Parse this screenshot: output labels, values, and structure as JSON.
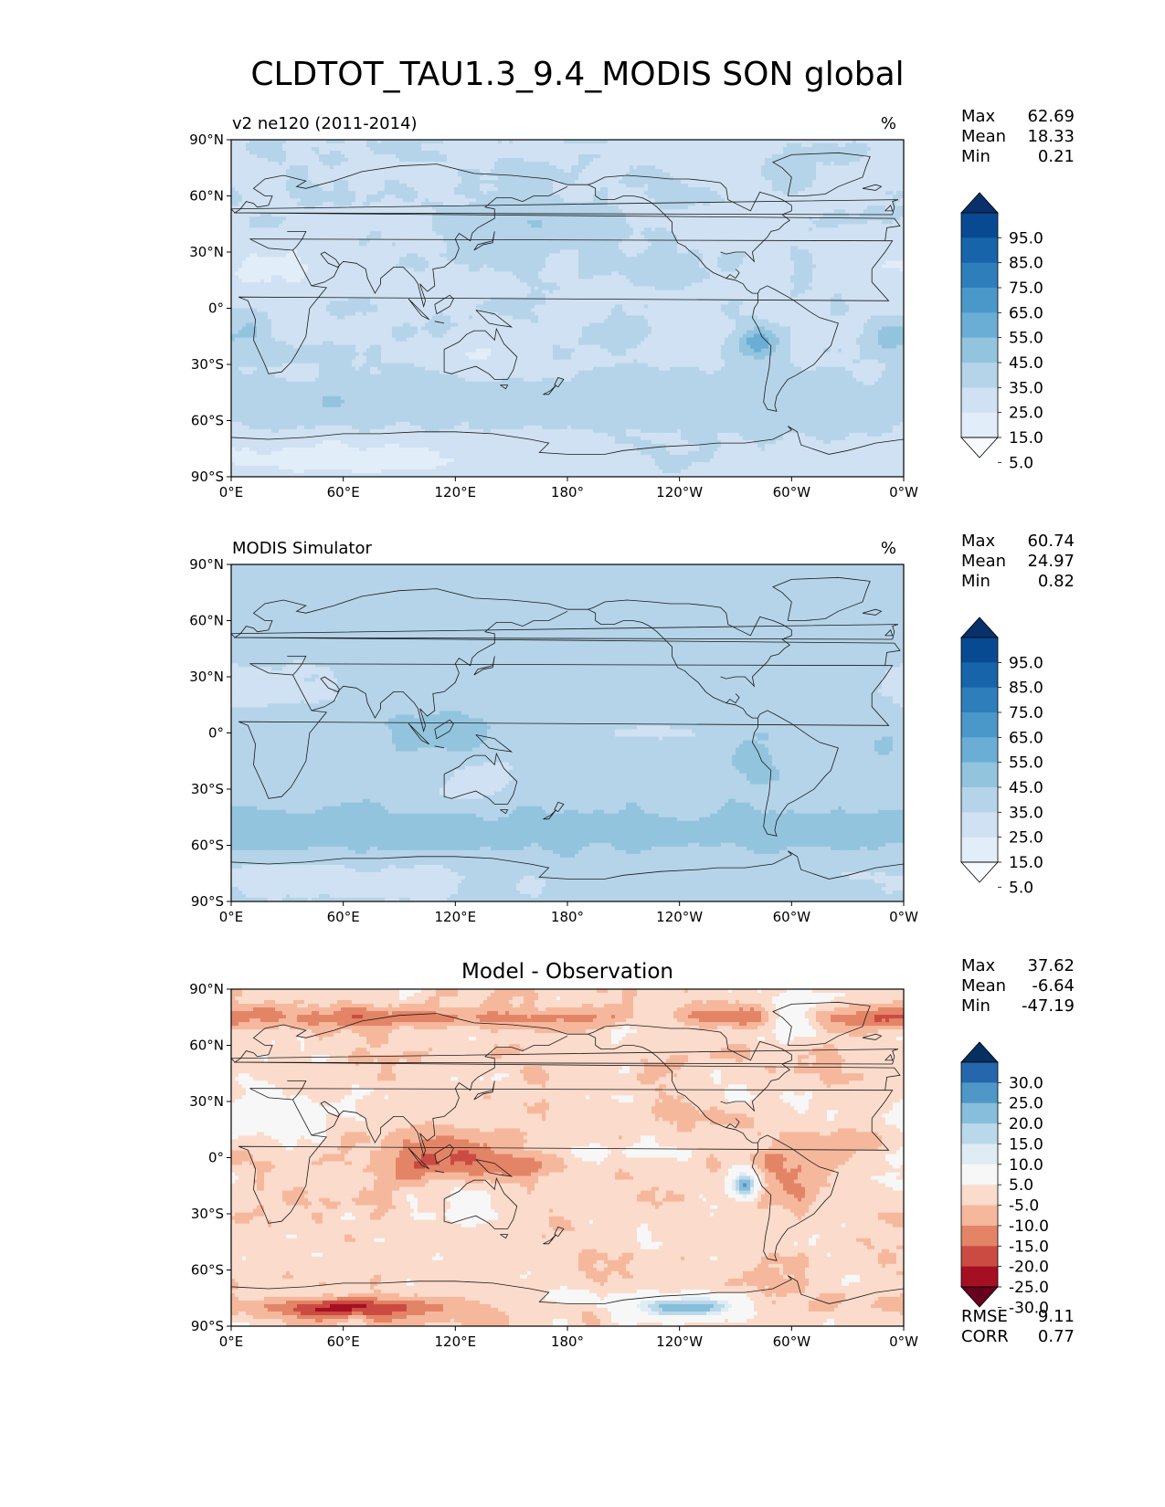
{
  "figure": {
    "title": "CLDTOT_TAU1.3_9.4_MODIS SON global"
  },
  "colors": {
    "seq": [
      "#f7fbff",
      "#e1edf8",
      "#cfe1f2",
      "#b5d4e9",
      "#93c4de",
      "#6aaed6",
      "#4a97c9",
      "#2e7ebc",
      "#1764ab",
      "#084a92",
      "#08306b"
    ],
    "div": [
      "#67001f",
      "#a50f22",
      "#cb4b42",
      "#e48466",
      "#f6b89d",
      "#fbdbcb",
      "#f7f7f7",
      "#dfecf4",
      "#b9d8e9",
      "#87bedc",
      "#4e97c6",
      "#2467ac",
      "#053061"
    ],
    "coast": "#1a1a1a"
  },
  "panels": [
    {
      "id": "model",
      "left_title": "v2 ne120 (2011-2014)",
      "center_title": "",
      "units": "%",
      "stats": [
        {
          "label": "Max",
          "value": "62.69"
        },
        {
          "label": "Mean",
          "value": "18.33"
        },
        {
          "label": "Min",
          "value": "0.21"
        }
      ],
      "colorbar": {
        "scale": "seq",
        "labels": [
          "95.0",
          "85.0",
          "75.0",
          "65.0",
          "55.0",
          "45.0",
          "35.0",
          "25.0",
          "15.0",
          "5.0"
        ]
      },
      "extra_stats": []
    },
    {
      "id": "obs",
      "left_title": "MODIS Simulator",
      "center_title": "",
      "units": "%",
      "stats": [
        {
          "label": "Max",
          "value": "60.74"
        },
        {
          "label": "Mean",
          "value": "24.97"
        },
        {
          "label": "Min",
          "value": "0.82"
        }
      ],
      "colorbar": {
        "scale": "seq",
        "labels": [
          "95.0",
          "85.0",
          "75.0",
          "65.0",
          "55.0",
          "45.0",
          "35.0",
          "25.0",
          "15.0",
          "5.0"
        ]
      },
      "extra_stats": []
    },
    {
      "id": "diff",
      "left_title": "",
      "center_title": "Model - Observation",
      "units": "",
      "stats": [
        {
          "label": "Max",
          "value": "37.62"
        },
        {
          "label": "Mean",
          "value": "-6.64"
        },
        {
          "label": "Min",
          "value": "-47.19"
        }
      ],
      "colorbar": {
        "scale": "div",
        "labels": [
          "30.0",
          "25.0",
          "20.0",
          "15.0",
          "10.0",
          "5.0",
          "-5.0",
          "-10.0",
          "-15.0",
          "-20.0",
          "-25.0",
          "-30.0"
        ]
      },
      "extra_stats": [
        {
          "label": "RMSE",
          "value": "9.11"
        },
        {
          "label": "CORR",
          "value": "0.77"
        }
      ]
    }
  ],
  "chart_data": [
    {
      "type": "heatmap",
      "title": "v2 ne120 (2011-2014)",
      "units": "%",
      "xticks": [
        "0°E",
        "60°E",
        "120°E",
        "180°",
        "120°W",
        "60°W",
        "0°W"
      ],
      "yticks": [
        "90°N",
        "60°N",
        "30°N",
        "0°",
        "30°S",
        "60°S",
        "90°S"
      ],
      "xlim": [
        0,
        360
      ],
      "ylim": [
        -90,
        90
      ],
      "levels": [
        5,
        15,
        25,
        35,
        45,
        55,
        65,
        75,
        85,
        95
      ],
      "max": 62.69,
      "mean": 18.33,
      "min": 0.21
    },
    {
      "type": "heatmap",
      "title": "MODIS Simulator",
      "units": "%",
      "xticks": [
        "0°E",
        "60°E",
        "120°E",
        "180°",
        "120°W",
        "60°W",
        "0°W"
      ],
      "yticks": [
        "90°N",
        "60°N",
        "30°N",
        "0°",
        "30°S",
        "60°S",
        "90°S"
      ],
      "xlim": [
        0,
        360
      ],
      "ylim": [
        -90,
        90
      ],
      "levels": [
        5,
        15,
        25,
        35,
        45,
        55,
        65,
        75,
        85,
        95
      ],
      "max": 60.74,
      "mean": 24.97,
      "min": 0.82
    },
    {
      "type": "heatmap",
      "title": "Model - Observation",
      "xticks": [
        "0°E",
        "60°E",
        "120°E",
        "180°",
        "120°W",
        "60°W",
        "0°W"
      ],
      "yticks": [
        "90°N",
        "60°N",
        "30°N",
        "0°",
        "30°S",
        "60°S",
        "90°S"
      ],
      "xlim": [
        0,
        360
      ],
      "ylim": [
        -90,
        90
      ],
      "levels": [
        -30,
        -25,
        -20,
        -15,
        -10,
        -5,
        5,
        10,
        15,
        20,
        25,
        30
      ],
      "max": 37.62,
      "mean": -6.64,
      "min": -47.19,
      "rmse": 9.11,
      "corr": 0.77
    }
  ]
}
